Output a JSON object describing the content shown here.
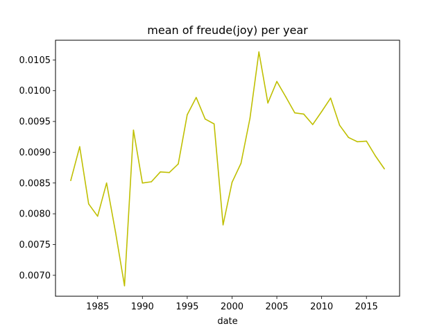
{
  "chart_data": {
    "type": "line",
    "title": "mean of freude(joy) per year",
    "xlabel": "date",
    "ylabel": "",
    "xlim": [
      1980.3,
      2018.7
    ],
    "ylim": [
      0.00666,
      0.01082
    ],
    "xticks": [
      1985,
      1990,
      1995,
      2000,
      2005,
      2010,
      2015
    ],
    "xtick_labels": [
      "1985",
      "1990",
      "1995",
      "2000",
      "2005",
      "2010",
      "2015"
    ],
    "yticks": [
      0.007,
      0.0075,
      0.008,
      0.0085,
      0.009,
      0.0095,
      0.01,
      0.0105
    ],
    "ytick_labels": [
      "0.0070",
      "0.0075",
      "0.0080",
      "0.0085",
      "0.0090",
      "0.0095",
      "0.0100",
      "0.0105"
    ],
    "grid": false,
    "series": [
      {
        "color": "#bfbf00",
        "x": [
          1982,
          1983,
          1984,
          1985,
          1986,
          1987,
          1988,
          1989,
          1990,
          1991,
          1992,
          1993,
          1994,
          1995,
          1996,
          1997,
          1998,
          1999,
          2000,
          2001,
          2002,
          2003,
          2004,
          2005,
          2006,
          2007,
          2008,
          2009,
          2010,
          2011,
          2012,
          2013,
          2014,
          2015,
          2016,
          2017
        ],
        "y": [
          0.00854,
          0.00909,
          0.00816,
          0.00796,
          0.0085,
          0.0077,
          0.00683,
          0.00936,
          0.0085,
          0.00852,
          0.00868,
          0.00867,
          0.00881,
          0.00961,
          0.00989,
          0.00954,
          0.00946,
          0.00782,
          0.00851,
          0.00882,
          0.00955,
          0.01063,
          0.0098,
          0.01015,
          0.0099,
          0.00964,
          0.00962,
          0.00945,
          0.00966,
          0.00988,
          0.00944,
          0.00924,
          0.00917,
          0.00918,
          0.00894,
          0.00873
        ]
      }
    ]
  }
}
